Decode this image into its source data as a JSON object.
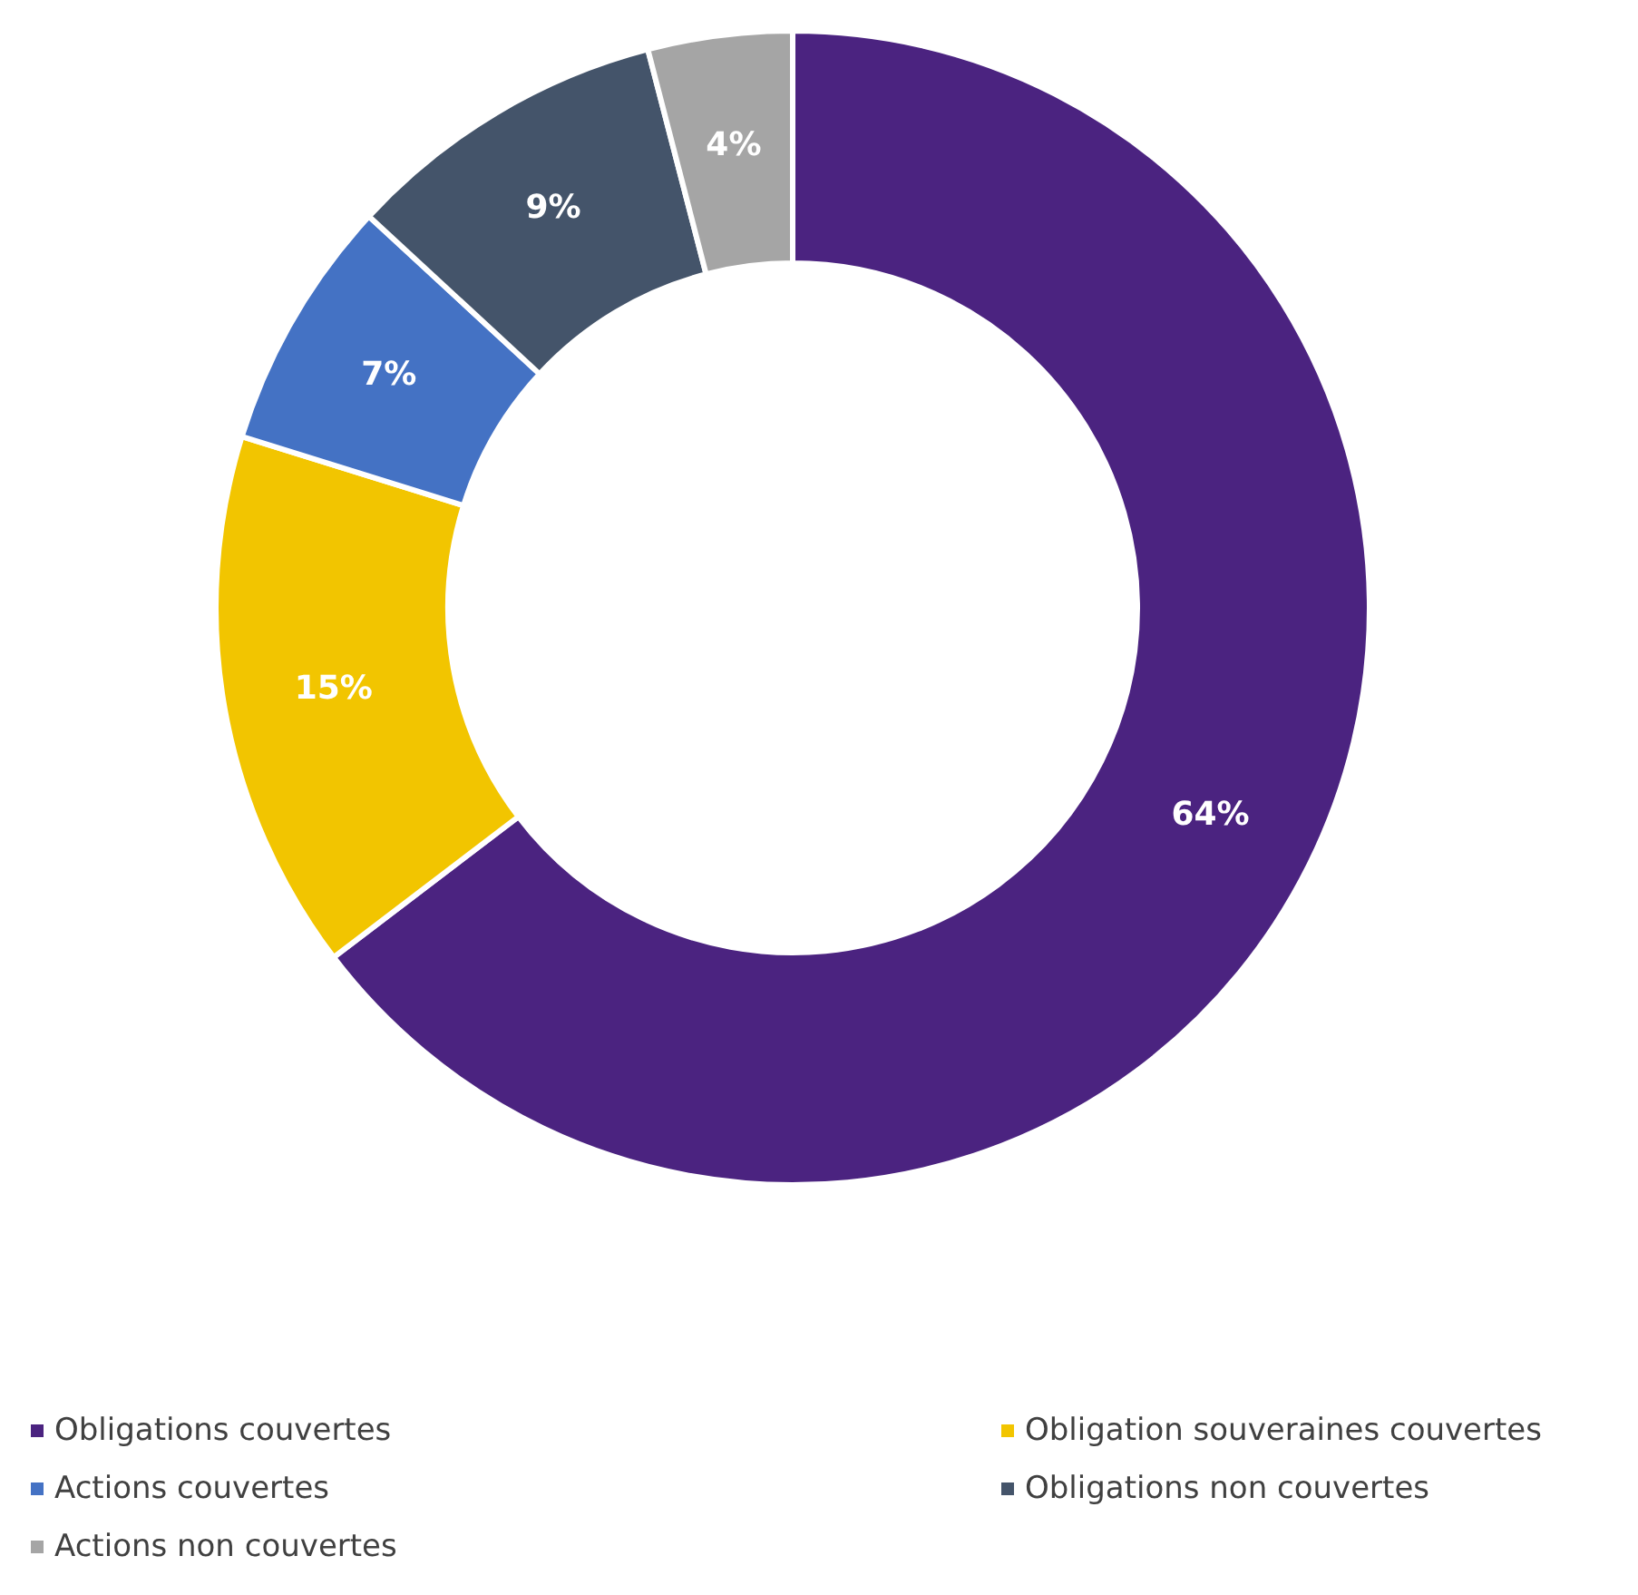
{
  "chart_data": {
    "type": "donut",
    "categories": [
      "Obligations couvertes",
      "Obligation souveraines couvertes",
      "Actions couvertes",
      "Obligations non couvertes",
      "Actions non couvertes"
    ],
    "values": [
      64,
      15,
      7,
      9,
      4
    ],
    "colors": [
      "#4b2380",
      "#f2c500",
      "#4472c4",
      "#44546a",
      "#a5a5a5"
    ],
    "value_labels": [
      "64%",
      "15%",
      "7%",
      "9%",
      "4%"
    ],
    "legend": "bottom"
  }
}
